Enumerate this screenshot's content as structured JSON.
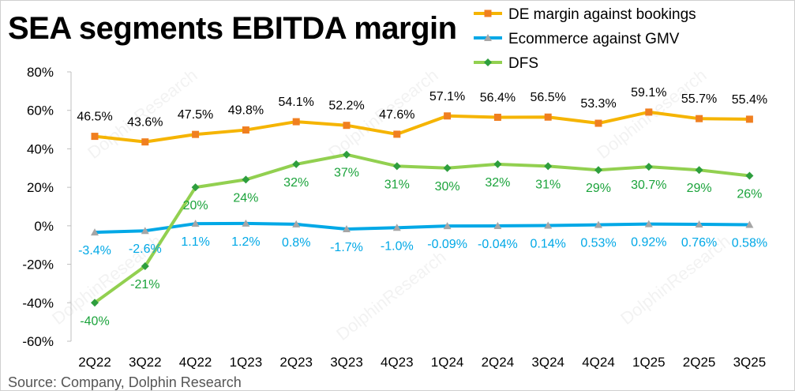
{
  "title": "SEA segments EBITDA margin",
  "source": "Source: Company, Dolphin Research",
  "watermark": "DolphinResearch",
  "chart_data": {
    "type": "line",
    "categories": [
      "2Q22",
      "3Q22",
      "4Q22",
      "1Q23",
      "2Q23",
      "3Q23",
      "4Q23",
      "1Q24",
      "2Q24",
      "3Q24",
      "4Q24",
      "1Q25",
      "2Q25",
      "3Q25"
    ],
    "ylim": [
      -60,
      80
    ],
    "yticks": [
      -60,
      -40,
      -20,
      0,
      20,
      40,
      60,
      80
    ],
    "ytick_labels": [
      "-60%",
      "-40%",
      "-20%",
      "0%",
      "20%",
      "40%",
      "60%",
      "80%"
    ],
    "legend_position": "top-right",
    "grid": false,
    "series": [
      {
        "name": "DE margin against bookings",
        "color": "#F5B400",
        "marker": "square",
        "marker_color": "#F07F20",
        "label_color": "#000000",
        "label_position": "above",
        "values": [
          46.5,
          43.6,
          47.5,
          49.8,
          54.1,
          52.2,
          47.6,
          57.1,
          56.4,
          56.5,
          53.3,
          59.1,
          55.7,
          55.4
        ],
        "labels": [
          "46.5%",
          "43.6%",
          "47.5%",
          "49.8%",
          "54.1%",
          "52.2%",
          "47.6%",
          "57.1%",
          "56.4%",
          "56.5%",
          "53.3%",
          "59.1%",
          "55.7%",
          "55.4%"
        ]
      },
      {
        "name": "Ecommerce against GMV",
        "color": "#00A8E6",
        "marker": "triangle",
        "marker_color": "#A6A6A6",
        "label_color": "#00A8E6",
        "label_position": "below",
        "values": [
          -3.4,
          -2.6,
          1.1,
          1.2,
          0.8,
          -1.7,
          -1.0,
          -0.09,
          -0.04,
          0.14,
          0.53,
          0.92,
          0.76,
          0.58
        ],
        "labels": [
          "-3.4%",
          "-2.6%",
          "1.1%",
          "1.2%",
          "0.8%",
          "-1.7%",
          "-1.0%",
          "-0.09%",
          "-0.04%",
          "0.14%",
          "0.53%",
          "0.92%",
          "0.76%",
          "0.58%"
        ]
      },
      {
        "name": "DFS",
        "color": "#92D050",
        "marker": "diamond",
        "marker_color": "#2E9E3E",
        "label_color": "#1BA33B",
        "label_position": "below",
        "values": [
          -40,
          -21,
          20,
          24,
          32,
          37,
          31,
          30,
          32,
          31,
          29,
          30.7,
          29,
          26
        ],
        "labels": [
          "-40%",
          "-21%",
          "20%",
          "24%",
          "32%",
          "37%",
          "31%",
          "30%",
          "32%",
          "31%",
          "29%",
          "30.7%",
          "29%",
          "26%"
        ]
      }
    ]
  }
}
